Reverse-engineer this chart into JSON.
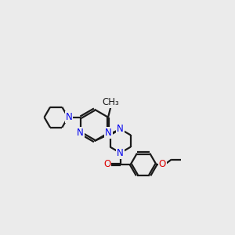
{
  "bg_color": "#ebebeb",
  "bond_color": "#1a1a1a",
  "n_color": "#0000ee",
  "o_color": "#dd0000",
  "lw": 1.6,
  "fs": 8.5,
  "xlim": [
    0.0,
    10.5
  ],
  "ylim": [
    2.5,
    8.5
  ]
}
